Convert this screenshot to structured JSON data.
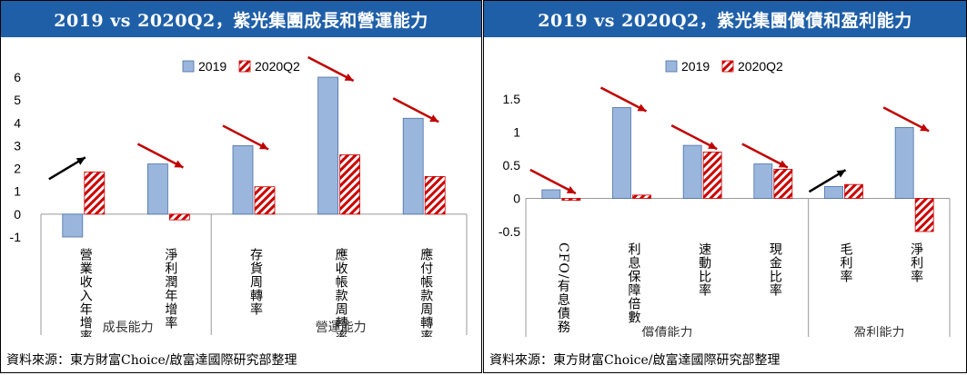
{
  "colors": {
    "header_bg": "#1f5fa8",
    "bar_2019": "#9bb6dd",
    "bar_2019_edge": "#4a6fa5",
    "bar_2020_hatch": "#cc0000",
    "arrow_up": "#000000",
    "arrow_down": "#c00000"
  },
  "source_text": "資料來源：東方財富Choice/啟富達國際研究部整理",
  "chart_data": [
    {
      "type": "bar",
      "title": "2019 vs 2020Q2，紫光集團成長和營運能力",
      "legend": [
        "2019",
        "2020Q2"
      ],
      "legend_position": "top",
      "ylim": [
        -1,
        6
      ],
      "yticks": [
        "6",
        "5",
        "4",
        "3",
        "2",
        "1",
        "0",
        "-1"
      ],
      "categories": [
        "營業收入年增率",
        "淨利潤年增率",
        "存貨周轉率",
        "應收帳款周轉率",
        "應付帳款周轉率"
      ],
      "groups": [
        {
          "label": "成長能力",
          "span": 2
        },
        {
          "label": "營運能力",
          "span": 3
        }
      ],
      "series": [
        {
          "name": "2019",
          "values": [
            -1.0,
            2.2,
            3.0,
            6.0,
            4.2
          ]
        },
        {
          "name": "2020Q2",
          "values": [
            1.85,
            -0.25,
            1.2,
            2.6,
            1.65
          ]
        }
      ],
      "trend_arrows": [
        "up",
        "down",
        "down",
        "down",
        "down"
      ]
    },
    {
      "type": "bar",
      "title": "2019 vs 2020Q2，紫光集團償債和盈利能力",
      "legend": [
        "2019",
        "2020Q2"
      ],
      "legend_position": "top",
      "ylim": [
        -0.5,
        1.5
      ],
      "yticks": [
        "1.5",
        "1",
        "0.5",
        "0",
        "-0.5"
      ],
      "categories": [
        "CFO/有息債務",
        "利息保障倍數",
        "速動比率",
        "現金比率",
        "毛利率",
        "淨利率"
      ],
      "groups": [
        {
          "label": "償債能力",
          "span": 4
        },
        {
          "label": "盈利能力",
          "span": 2
        }
      ],
      "series": [
        {
          "name": "2019",
          "values": [
            0.13,
            1.37,
            0.8,
            0.52,
            0.18,
            1.07
          ]
        },
        {
          "name": "2020Q2",
          "values": [
            -0.03,
            0.05,
            0.7,
            0.44,
            0.21,
            -0.5
          ]
        }
      ],
      "trend_arrows": [
        "down",
        "down",
        "down",
        "down",
        "up",
        "down"
      ]
    }
  ]
}
